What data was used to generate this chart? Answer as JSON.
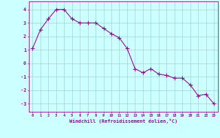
{
  "x": [
    0,
    1,
    2,
    3,
    4,
    5,
    6,
    7,
    8,
    9,
    10,
    11,
    12,
    13,
    14,
    15,
    16,
    17,
    18,
    19,
    20,
    21,
    22,
    23
  ],
  "y": [
    1.1,
    2.5,
    3.3,
    4.0,
    4.0,
    3.3,
    3.0,
    3.0,
    3.0,
    2.6,
    2.2,
    1.9,
    1.1,
    -0.4,
    -0.7,
    -0.4,
    -0.8,
    -0.9,
    -1.1,
    -1.1,
    -1.6,
    -2.4,
    -2.3,
    -3.0
  ],
  "line_color": "#990099",
  "marker": "+",
  "bg_color": "#ccffff",
  "grid_color": "#aacccc",
  "xlabel": "Windchill (Refroidissement éolien,°C)",
  "xlabel_color": "#990099",
  "tick_color": "#990099",
  "ylabel_ticks": [
    -3,
    -2,
    -1,
    0,
    1,
    2,
    3,
    4
  ],
  "xlim": [
    -0.5,
    23.5
  ],
  "ylim": [
    -3.6,
    4.6
  ]
}
